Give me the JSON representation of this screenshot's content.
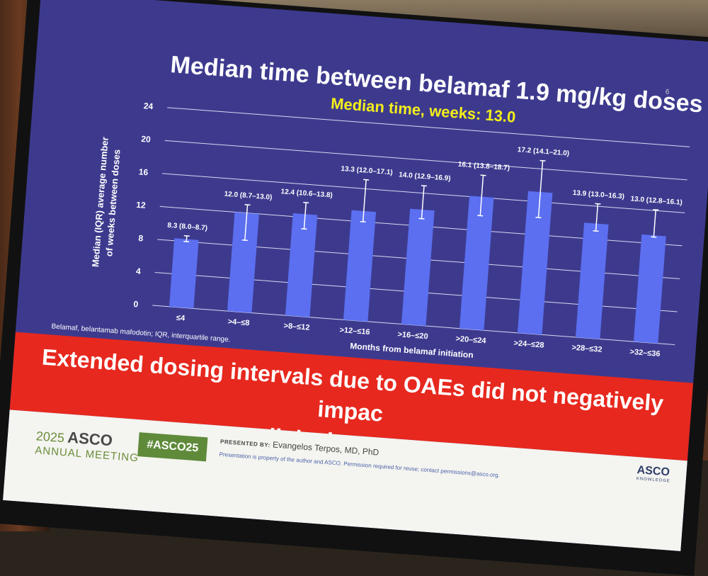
{
  "slide": {
    "title": "Median time between belamaf 1.9 mg/kg doses",
    "subtitle": "Median time, weeks: 13.0",
    "page_number": "6",
    "footnote": "Belamaf, belantamab mafodotin; IQR, interquartile range.",
    "banner_line1": "Extended dosing intervals due to OAEs did not negatively impac",
    "banner_line2": "clinical response"
  },
  "footer": {
    "year": "2025",
    "org": "ASCO",
    "meeting": "ANNUAL MEETING",
    "hashtag": "#ASCO25",
    "presented_label": "PRESENTED BY:",
    "presenter": "Evangelos Terpos, MD, PhD",
    "disclaimer": "Presentation is property of the author and ASCO. Permission required for reuse; contact permissions@asco.org.",
    "brand": "ASCO",
    "brand_sub": "KNOWLEDGE"
  },
  "colors": {
    "slide_bg": "#3d3a8e",
    "bar": "#5b6ff0",
    "subtitle": "#f3ee1b",
    "banner": "#e7281e",
    "hashtag_bg": "#5f8a3a"
  },
  "chart_data": {
    "type": "bar",
    "title": "Median time between belamaf 1.9 mg/kg doses",
    "xlabel": "Months from belamaf initiation",
    "ylabel_line1": "Median (IQR) average number",
    "ylabel_line2": "of weeks between doses",
    "ylim": [
      0,
      24
    ],
    "yticks": [
      0,
      4,
      8,
      12,
      16,
      20,
      24
    ],
    "grid": true,
    "categories": [
      "≤4",
      ">4–≤8",
      ">8–≤12",
      ">12–≤16",
      ">16–≤20",
      ">20–≤24",
      ">24–≤28",
      ">28–≤32",
      ">32–≤36"
    ],
    "values": [
      8.3,
      12.0,
      12.4,
      13.3,
      14.0,
      16.1,
      17.2,
      13.9,
      13.0
    ],
    "iqr_low": [
      8.0,
      8.7,
      10.6,
      12.0,
      12.9,
      13.8,
      14.1,
      13.0,
      12.8
    ],
    "iqr_high": [
      8.7,
      13.0,
      13.8,
      17.1,
      16.9,
      18.7,
      21.0,
      16.3,
      16.1
    ],
    "data_labels": [
      "8.3 (8.0–8.7)",
      "12.0 (8.7–13.0)",
      "12.4 (10.6–13.8)",
      "13.3 (12.0–17.1)",
      "14.0 (12.9–16.9)",
      "16.1 (13.8–18.7)",
      "17.2 (14.1–21.0)",
      "13.9 (13.0–16.3)",
      "13.0 (12.8–16.1)"
    ]
  }
}
